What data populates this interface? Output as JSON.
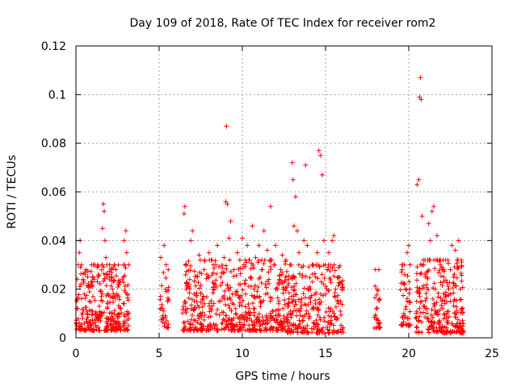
{
  "chart_data": {
    "type": "scatter",
    "title": "Day 109 of 2018, Rate Of TEC Index for receiver rom2",
    "xlabel": "GPS time / hours",
    "ylabel": "ROTI / TECUs",
    "xlim": [
      0,
      25
    ],
    "ylim": [
      0,
      0.12
    ],
    "xticks": [
      0,
      5,
      10,
      15,
      20,
      25
    ],
    "xtick_labels": [
      "0",
      "5",
      "10",
      "15",
      "20",
      "25"
    ],
    "yticks": [
      0,
      0.02,
      0.04,
      0.06,
      0.08,
      0.1,
      0.12
    ],
    "ytick_labels": [
      "0",
      "0.02",
      "0.04",
      "0.06",
      "0.08",
      "0.1",
      "0.12"
    ],
    "grid": true,
    "marker": "+",
    "color": "#ff0000",
    "series": [
      {
        "name": "ROTI",
        "points": [
          [
            0.1,
            0.012
          ],
          [
            0.2,
            0.035
          ],
          [
            0.25,
            0.04
          ],
          [
            0.3,
            0.022
          ],
          [
            0.4,
            0.008
          ],
          [
            0.5,
            0.018
          ],
          [
            0.6,
            0.028
          ],
          [
            0.7,
            0.006
          ],
          [
            0.8,
            0.015
          ],
          [
            0.9,
            0.021
          ],
          [
            1.0,
            0.011
          ],
          [
            1.1,
            0.024
          ],
          [
            1.2,
            0.005
          ],
          [
            1.3,
            0.03
          ],
          [
            1.4,
            0.013
          ],
          [
            1.5,
            0.019
          ],
          [
            1.6,
            0.045
          ],
          [
            1.65,
            0.055
          ],
          [
            1.7,
            0.052
          ],
          [
            1.75,
            0.04
          ],
          [
            1.8,
            0.033
          ],
          [
            1.9,
            0.014
          ],
          [
            2.0,
            0.026
          ],
          [
            2.1,
            0.007
          ],
          [
            2.2,
            0.02
          ],
          [
            2.3,
            0.017
          ],
          [
            2.4,
            0.028
          ],
          [
            2.5,
            0.009
          ],
          [
            2.6,
            0.022
          ],
          [
            2.7,
            0.012
          ],
          [
            2.85,
            0.025
          ],
          [
            2.9,
            0.04
          ],
          [
            3.0,
            0.044
          ],
          [
            3.05,
            0.035
          ],
          [
            3.1,
            0.018
          ],
          [
            3.15,
            0.005
          ],
          [
            5.1,
            0.033
          ],
          [
            5.2,
            0.012
          ],
          [
            5.3,
            0.038
          ],
          [
            5.35,
            0.006
          ],
          [
            5.4,
            0.02
          ],
          [
            5.5,
            0.015
          ],
          [
            6.5,
            0.051
          ],
          [
            6.55,
            0.054
          ],
          [
            6.6,
            0.03
          ],
          [
            6.7,
            0.012
          ],
          [
            6.8,
            0.022
          ],
          [
            6.9,
            0.04
          ],
          [
            7.0,
            0.044
          ],
          [
            7.1,
            0.018
          ],
          [
            7.2,
            0.007
          ],
          [
            7.3,
            0.025
          ],
          [
            7.4,
            0.034
          ],
          [
            7.5,
            0.01
          ],
          [
            7.6,
            0.016
          ],
          [
            7.7,
            0.028
          ],
          [
            8.0,
            0.035
          ],
          [
            8.1,
            0.012
          ],
          [
            8.2,
            0.004
          ],
          [
            8.3,
            0.02
          ],
          [
            8.4,
            0.03
          ],
          [
            8.5,
            0.038
          ],
          [
            8.6,
            0.015
          ],
          [
            8.7,
            0.025
          ],
          [
            8.8,
            0.006
          ],
          [
            8.9,
            0.033
          ],
          [
            9.0,
            0.056
          ],
          [
            9.05,
            0.087
          ],
          [
            9.1,
            0.055
          ],
          [
            9.2,
            0.041
          ],
          [
            9.3,
            0.048
          ],
          [
            9.4,
            0.018
          ],
          [
            9.5,
            0.028
          ],
          [
            9.6,
            0.012
          ],
          [
            9.7,
            0.035
          ],
          [
            9.8,
            0.022
          ],
          [
            9.9,
            0.009
          ],
          [
            10.0,
            0.041
          ],
          [
            10.1,
            0.03
          ],
          [
            10.2,
            0.018
          ],
          [
            10.3,
            0.038
          ],
          [
            10.4,
            0.012
          ],
          [
            10.5,
            0.025
          ],
          [
            10.6,
            0.046
          ],
          [
            10.7,
            0.02
          ],
          [
            10.8,
            0.033
          ],
          [
            10.9,
            0.008
          ],
          [
            11.0,
            0.038
          ],
          [
            11.1,
            0.015
          ],
          [
            11.2,
            0.028
          ],
          [
            11.3,
            0.044
          ],
          [
            11.4,
            0.018
          ],
          [
            11.5,
            0.036
          ],
          [
            11.6,
            0.024
          ],
          [
            11.7,
            0.054
          ],
          [
            11.8,
            0.011
          ],
          [
            11.9,
            0.03
          ],
          [
            12.0,
            0.038
          ],
          [
            12.1,
            0.02
          ],
          [
            12.2,
            0.015
          ],
          [
            12.3,
            0.028
          ],
          [
            12.4,
            0.034
          ],
          [
            12.5,
            0.009
          ],
          [
            12.6,
            0.025
          ],
          [
            12.7,
            0.006
          ],
          [
            12.8,
            0.016
          ],
          [
            12.9,
            0.03
          ],
          [
            13.0,
            0.072
          ],
          [
            13.05,
            0.065
          ],
          [
            13.1,
            0.046
          ],
          [
            13.2,
            0.058
          ],
          [
            13.3,
            0.044
          ],
          [
            13.4,
            0.035
          ],
          [
            13.5,
            0.012
          ],
          [
            13.6,
            0.025
          ],
          [
            13.7,
            0.04
          ],
          [
            13.8,
            0.071
          ],
          [
            13.9,
            0.038
          ],
          [
            14.0,
            0.008
          ],
          [
            14.1,
            0.02
          ],
          [
            14.2,
            0.03
          ],
          [
            14.3,
            0.012
          ],
          [
            14.4,
            0.025
          ],
          [
            14.5,
            0.035
          ],
          [
            14.6,
            0.077
          ],
          [
            14.7,
            0.075
          ],
          [
            14.8,
            0.067
          ],
          [
            14.9,
            0.04
          ],
          [
            15.0,
            0.018
          ],
          [
            15.1,
            0.028
          ],
          [
            15.2,
            0.035
          ],
          [
            15.3,
            0.012
          ],
          [
            15.4,
            0.04
          ],
          [
            15.5,
            0.042
          ],
          [
            15.6,
            0.02
          ],
          [
            15.7,
            0.008
          ],
          [
            15.8,
            0.025
          ],
          [
            15.9,
            0.015
          ],
          [
            16.0,
            0.022
          ],
          [
            18.0,
            0.028
          ],
          [
            18.05,
            0.012
          ],
          [
            18.1,
            0.02
          ],
          [
            18.15,
            0.006
          ],
          [
            18.2,
            0.028
          ],
          [
            18.25,
            0.016
          ],
          [
            19.6,
            0.028
          ],
          [
            19.7,
            0.01
          ],
          [
            19.8,
            0.02
          ],
          [
            19.9,
            0.035
          ],
          [
            20.0,
            0.038
          ],
          [
            20.05,
            0.015
          ],
          [
            20.5,
            0.063
          ],
          [
            20.6,
            0.065
          ],
          [
            20.65,
            0.099
          ],
          [
            20.7,
            0.107
          ],
          [
            20.75,
            0.098
          ],
          [
            20.8,
            0.05
          ],
          [
            20.9,
            0.03
          ],
          [
            21.0,
            0.012
          ],
          [
            21.1,
            0.025
          ],
          [
            21.2,
            0.047
          ],
          [
            21.3,
            0.04
          ],
          [
            21.4,
            0.052
          ],
          [
            21.5,
            0.054
          ],
          [
            21.6,
            0.02
          ],
          [
            21.7,
            0.042
          ],
          [
            21.8,
            0.006
          ],
          [
            21.9,
            0.03
          ],
          [
            22.0,
            0.015
          ],
          [
            22.1,
            0.025
          ],
          [
            22.2,
            0.032
          ],
          [
            22.3,
            0.01
          ],
          [
            22.4,
            0.02
          ],
          [
            22.5,
            0.028
          ],
          [
            22.6,
            0.038
          ],
          [
            22.7,
            0.015
          ],
          [
            22.8,
            0.036
          ],
          [
            22.9,
            0.005
          ],
          [
            23.0,
            0.04
          ],
          [
            23.1,
            0.02
          ],
          [
            23.2,
            0.012
          ]
        ]
      }
    ],
    "clusters": [
      {
        "x": [
          0,
          3.2
        ],
        "y": [
          0.003,
          0.03
        ],
        "n": 300
      },
      {
        "x": [
          5.0,
          5.6
        ],
        "y": [
          0.004,
          0.03
        ],
        "n": 30
      },
      {
        "x": [
          6.4,
          12.8
        ],
        "y": [
          0.003,
          0.032
        ],
        "n": 520
      },
      {
        "x": [
          12.7,
          16.1
        ],
        "y": [
          0.002,
          0.03
        ],
        "n": 260
      },
      {
        "x": [
          17.9,
          18.3
        ],
        "y": [
          0.004,
          0.022
        ],
        "n": 22
      },
      {
        "x": [
          19.5,
          20.1
        ],
        "y": [
          0.005,
          0.03
        ],
        "n": 45
      },
      {
        "x": [
          20.4,
          23.3
        ],
        "y": [
          0.002,
          0.032
        ],
        "n": 260
      }
    ]
  }
}
